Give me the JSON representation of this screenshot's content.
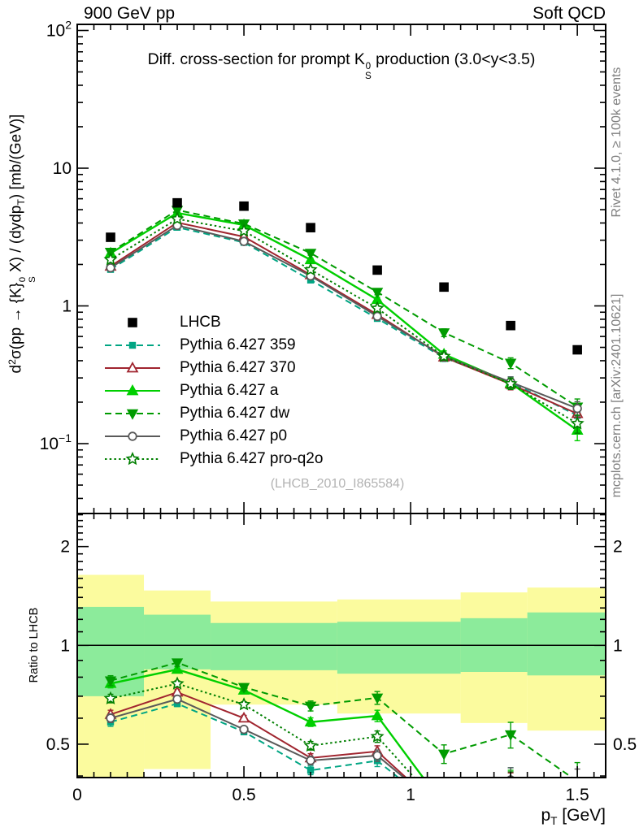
{
  "header": {
    "left": "900 GeV pp",
    "right": "Soft QCD"
  },
  "side_notes": {
    "top": "Rivet 4.1.0, ≥ 100k events",
    "bottom": "mcplots.cern.ch [arXiv:2401.10621]"
  },
  "plot": {
    "title_segments": [
      {
        "t": "Diff. cross-section for prompt K"
      },
      {
        "stack": [
          "0",
          "S"
        ]
      },
      {
        "t": " production (3.0<y<3.5)"
      }
    ],
    "watermark": "(LHCB_2010_I865584)",
    "ylabel_segments": [
      {
        "t": "d"
      },
      {
        "sup": "2"
      },
      {
        "t": "σ(pp → {K}"
      },
      {
        "stack": [
          "0",
          "S"
        ]
      },
      {
        "t": " X) / (dydp"
      },
      {
        "sub": "T"
      },
      {
        "t": ") [mb/(GeV)]"
      }
    ],
    "xlabel_segments": [
      {
        "t": "p"
      },
      {
        "sub": "T"
      },
      {
        "t": " [GeV]"
      }
    ],
    "ratio_ylabel": "Ratio to LHCB"
  },
  "legend": [
    {
      "id": "lhcb",
      "label": "LHCB",
      "marker": "square-filled",
      "color": "#000000",
      "line": "none"
    },
    {
      "id": "359",
      "label": "Pythia 6.427 359",
      "marker": "square-filled-small",
      "color": "#00a583",
      "line": "dashed"
    },
    {
      "id": "370",
      "label": "Pythia 6.427 370",
      "marker": "triangle-open",
      "color": "#a0252f",
      "line": "solid"
    },
    {
      "id": "a",
      "label": "Pythia 6.427 a",
      "marker": "triangle-filled",
      "color": "#00cf00",
      "line": "solid"
    },
    {
      "id": "dw",
      "label": "Pythia 6.427 dw",
      "marker": "triangle-down-filled",
      "color": "#009b00",
      "line": "dashed"
    },
    {
      "id": "p0",
      "label": "Pythia 6.427 p0",
      "marker": "circle-open",
      "color": "#5a5a5a",
      "line": "solid"
    },
    {
      "id": "q2o",
      "label": "Pythia 6.427 pro-q2o",
      "marker": "star-open",
      "color": "#007f00",
      "line": "dotted"
    }
  ],
  "chart_data": {
    "type": "line",
    "title": "Diff. cross-section for prompt K0S production (3.0<y<3.5)",
    "xlabel": "pT [GeV]",
    "ylabel": "d2σ(pp → {K}0S X) / (dydpT) [mb/(GeV)]",
    "x": [
      0.1,
      0.3,
      0.5,
      0.7,
      0.9,
      1.1,
      1.3,
      1.5
    ],
    "x_range": [
      0,
      1.585
    ],
    "x_major_ticks": [
      0,
      0.5,
      1,
      1.5
    ],
    "x_major_tick_labels": [
      "0",
      "0.5",
      "1",
      "1.5"
    ],
    "x_minor_step": 0.05,
    "main_y_log_range": [
      0.031,
      110
    ],
    "main_y_decade_labels": [
      {
        "value": 100,
        "base": "10",
        "exp": "2"
      },
      {
        "value": 10,
        "base": "10",
        "exp": ""
      },
      {
        "value": 1,
        "base": "1",
        "exp": ""
      },
      {
        "value": 0.1,
        "base": "10",
        "exp": "−1"
      }
    ],
    "ratio_y_log_range": [
      0.396,
      2.52
    ],
    "ratio_y_ticks": [
      {
        "value": 2,
        "label": "2"
      },
      {
        "value": 1,
        "label": "1"
      },
      {
        "value": 0.5,
        "label": "0.5"
      }
    ],
    "lhcb": {
      "id": "lhcb",
      "label": "LHCB",
      "values": [
        3.15,
        5.6,
        5.3,
        3.7,
        1.82,
        1.37,
        0.72,
        0.48
      ]
    },
    "series": [
      {
        "id": "359",
        "label": "Pythia 6.427 359",
        "values": [
          1.84,
          3.72,
          2.89,
          1.54,
          0.81,
          0.42,
          0.28,
          0.16
        ],
        "err_frac": [
          0.03,
          0.02,
          0.02,
          0.03,
          0.04,
          0.06,
          0.09,
          0.13
        ]
      },
      {
        "id": "370",
        "label": "Pythia 6.427 370",
        "values": [
          1.94,
          4.03,
          3.18,
          1.68,
          0.865,
          0.425,
          0.27,
          0.165
        ],
        "err_frac": [
          0.03,
          0.02,
          0.02,
          0.03,
          0.04,
          0.06,
          0.09,
          0.13
        ]
      },
      {
        "id": "a",
        "label": "Pythia 6.427 a",
        "values": [
          2.41,
          4.73,
          3.87,
          2.16,
          1.11,
          0.445,
          0.275,
          0.125
        ],
        "err_frac": [
          0.03,
          0.02,
          0.02,
          0.03,
          0.04,
          0.06,
          0.09,
          0.16
        ]
      },
      {
        "id": "dw",
        "label": "Pythia 6.427 dw",
        "values": [
          2.46,
          4.96,
          3.95,
          2.42,
          1.26,
          0.64,
          0.385,
          0.185
        ],
        "err_frac": [
          0.035,
          0.025,
          0.025,
          0.035,
          0.045,
          0.065,
          0.09,
          0.14
        ]
      },
      {
        "id": "p0",
        "label": "Pythia 6.427 p0",
        "values": [
          1.89,
          3.84,
          2.94,
          1.65,
          0.84,
          0.43,
          0.28,
          0.18
        ],
        "err_frac": [
          0.03,
          0.02,
          0.02,
          0.03,
          0.04,
          0.06,
          0.09,
          0.12
        ]
      },
      {
        "id": "q2o",
        "label": "Pythia 6.427 pro-q2o",
        "values": [
          2.17,
          4.28,
          3.5,
          1.83,
          0.96,
          0.43,
          0.272,
          0.14
        ],
        "err_frac": [
          0.03,
          0.02,
          0.02,
          0.03,
          0.04,
          0.06,
          0.09,
          0.15
        ]
      }
    ],
    "ratio_bands": [
      {
        "x0": 0.0,
        "x1": 0.2,
        "yellow": [
          0.38,
          1.64
        ],
        "green": [
          0.7,
          1.31
        ]
      },
      {
        "x0": 0.2,
        "x1": 0.4,
        "yellow": [
          0.42,
          1.47
        ],
        "green": [
          0.845,
          1.24
        ]
      },
      {
        "x0": 0.4,
        "x1": 0.78,
        "yellow": [
          0.66,
          1.36
        ],
        "green": [
          0.84,
          1.17
        ]
      },
      {
        "x0": 0.78,
        "x1": 1.15,
        "yellow": [
          0.62,
          1.38
        ],
        "green": [
          0.82,
          1.18
        ]
      },
      {
        "x0": 1.15,
        "x1": 1.35,
        "yellow": [
          0.58,
          1.45
        ],
        "green": [
          0.83,
          1.21
        ]
      },
      {
        "x0": 1.35,
        "x1": 1.585,
        "yellow": [
          0.55,
          1.5
        ],
        "green": [
          0.81,
          1.26
        ]
      }
    ],
    "colors": {
      "yellow_band": "#fbfb9e",
      "green_band": "#8ceb9b"
    },
    "legend_position": "middle-left",
    "grid": false
  }
}
